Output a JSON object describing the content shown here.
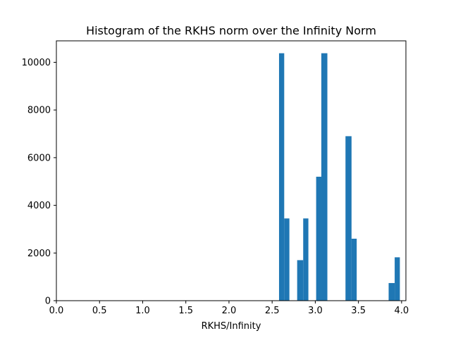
{
  "chart_data": {
    "type": "bar",
    "title": "Histogram of the RKHS norm over the Infinity Norm",
    "xlabel": "RKHS/Infinity",
    "ylabel": "",
    "xlim": [
      0.0,
      4.05
    ],
    "ylim": [
      0,
      10900
    ],
    "bar_color": "#1f77b4",
    "grid": false,
    "x_ticks": [
      0.0,
      0.5,
      1.0,
      1.5,
      2.0,
      2.5,
      3.0,
      3.5,
      4.0
    ],
    "x_tick_labels": [
      "0.0",
      "0.5",
      "1.0",
      "1.5",
      "2.0",
      "2.5",
      "3.0",
      "3.5",
      "4.0"
    ],
    "y_ticks": [
      0,
      2000,
      4000,
      6000,
      8000,
      10000
    ],
    "y_tick_labels": [
      "0",
      "2000",
      "4000",
      "6000",
      "8000",
      "10000"
    ],
    "bins": [
      {
        "x0": 2.58,
        "x1": 2.64,
        "value": 10380
      },
      {
        "x0": 2.64,
        "x1": 2.7,
        "value": 3450
      },
      {
        "x0": 2.79,
        "x1": 2.86,
        "value": 1700
      },
      {
        "x0": 2.86,
        "x1": 2.92,
        "value": 3450
      },
      {
        "x0": 3.01,
        "x1": 3.07,
        "value": 5200
      },
      {
        "x0": 3.07,
        "x1": 3.14,
        "value": 10380
      },
      {
        "x0": 3.35,
        "x1": 3.42,
        "value": 6900
      },
      {
        "x0": 3.42,
        "x1": 3.48,
        "value": 2600
      },
      {
        "x0": 3.85,
        "x1": 3.92,
        "value": 740
      },
      {
        "x0": 3.92,
        "x1": 3.98,
        "value": 1820
      }
    ]
  }
}
